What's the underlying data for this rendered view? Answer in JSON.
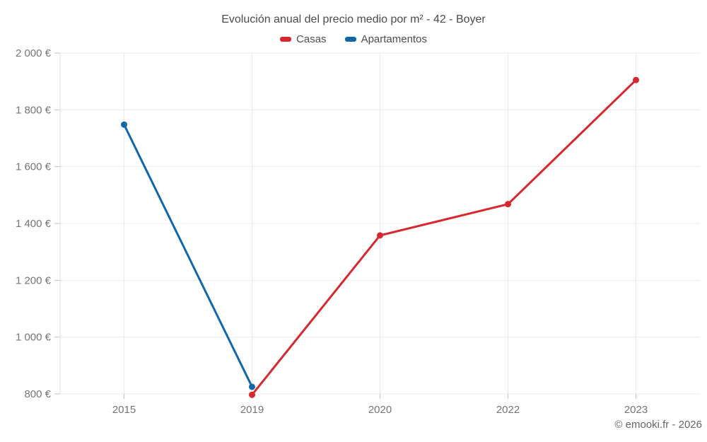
{
  "chart": {
    "title": "Evolución anual del precio medio por m² - 42 - Boyer"
  },
  "footer": {
    "attribution": "© emooki.fr - 2026"
  },
  "chart_data": {
    "type": "line",
    "title": "Evolución anual del precio medio por m² - 42 - Boyer",
    "categories": [
      "2015",
      "2019",
      "2020",
      "2022",
      "2023"
    ],
    "series": [
      {
        "name": "Casas",
        "color": "#d7282f",
        "values": [
          null,
          797,
          1358,
          1468,
          1905
        ]
      },
      {
        "name": "Apartamentos",
        "color": "#1168a8",
        "values": [
          1748,
          825,
          null,
          null,
          null
        ]
      }
    ],
    "xlabel": "",
    "ylabel": "",
    "ylim": [
      800,
      2000
    ],
    "y_ticks": [
      800,
      1000,
      1200,
      1400,
      1600,
      1800,
      2000
    ],
    "y_tick_labels": [
      "800 €",
      "1 000 €",
      "1 200 €",
      "1 400 €",
      "1 600 €",
      "1 800 €",
      "2 000 €"
    ],
    "currency": "€",
    "legend_position": "top",
    "grid": true,
    "colors": {
      "grid_line": "#ececec",
      "axis_line": "#e0e0e0",
      "tick_mark": "#c2c2c2",
      "tick_label": "#757575",
      "title_text": "#4c4c4c"
    }
  }
}
